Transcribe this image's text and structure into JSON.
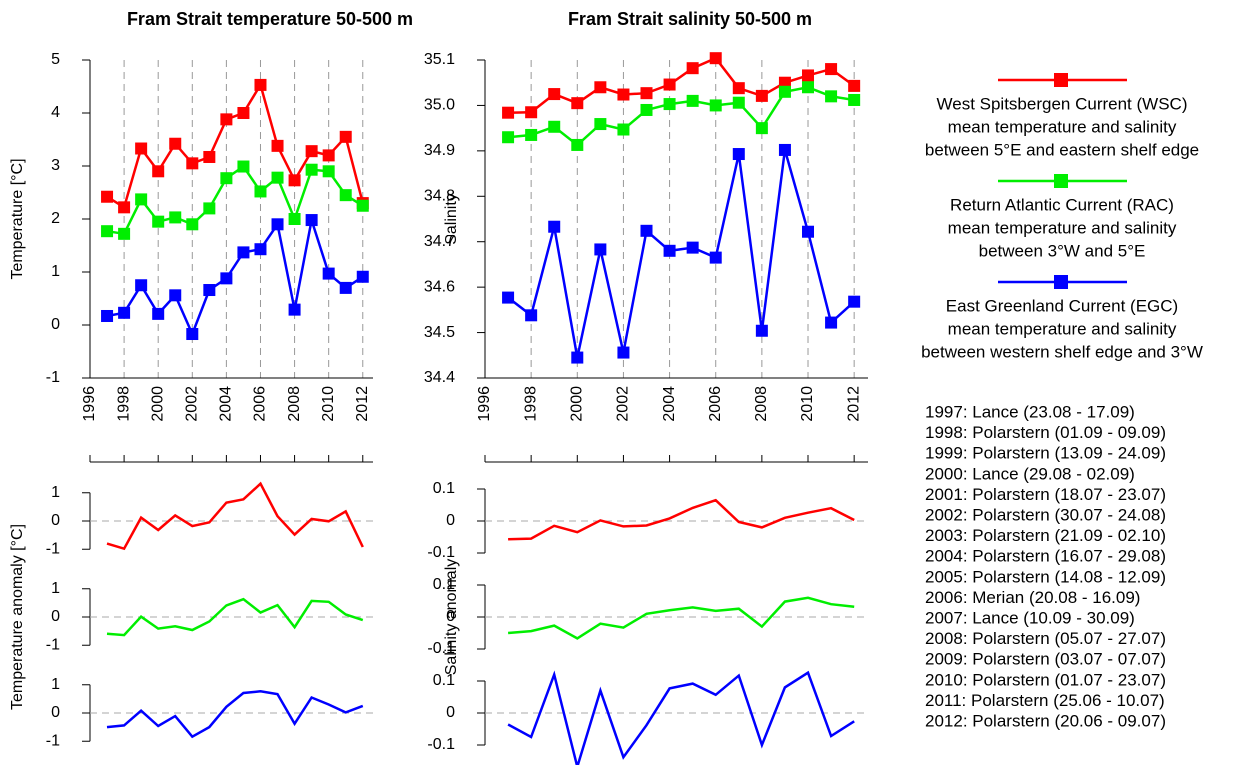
{
  "chart_data": [
    {
      "type": "line",
      "title": "Fram Strait temperature 50-500 m",
      "ylabel": "Temperature [°C]",
      "x": [
        1997,
        1998,
        1999,
        2000,
        2001,
        2002,
        2003,
        2004,
        2005,
        2006,
        2007,
        2008,
        2009,
        2010,
        2011,
        2012
      ],
      "xlim": [
        1996,
        2012.6
      ],
      "xticks": [
        1996,
        1998,
        2000,
        2002,
        2004,
        2006,
        2008,
        2010,
        2012
      ],
      "ylim": [
        -1,
        5
      ],
      "yticks": [
        -1,
        0,
        1,
        2,
        3,
        4,
        5
      ],
      "grid": "x",
      "markers": true,
      "series": [
        {
          "name": "West Spitsbergen Current (WSC)",
          "description": [
            "mean temperature and salinity",
            "between 5°E and eastern shelf edge"
          ],
          "color": "#ff0000",
          "values": [
            2.42,
            2.22,
            3.33,
            2.9,
            3.42,
            3.05,
            3.17,
            3.88,
            4.0,
            4.53,
            3.38,
            2.73,
            3.28,
            3.2,
            3.55,
            2.3
          ]
        },
        {
          "name": "Return Atlantic Current (RAC)",
          "description": [
            "mean temperature and salinity",
            "between 3°W and 5°E"
          ],
          "color": "#00ee00",
          "values": [
            1.77,
            1.72,
            2.37,
            1.95,
            2.03,
            1.9,
            2.2,
            2.77,
            2.99,
            2.52,
            2.78,
            2.0,
            2.93,
            2.9,
            2.45,
            2.25
          ]
        },
        {
          "name": "East Greenland Current (EGC)",
          "description": [
            "mean temperature and salinity",
            "between western shelf edge and 3°W"
          ],
          "color": "#0000ff",
          "values": [
            0.17,
            0.23,
            0.75,
            0.21,
            0.56,
            -0.17,
            0.66,
            0.88,
            1.37,
            1.43,
            1.9,
            0.29,
            1.98,
            0.97,
            0.7,
            0.91
          ]
        }
      ]
    },
    {
      "type": "line",
      "title": "Fram Strait salinity 50-500 m",
      "ylabel": "Salinity",
      "x": [
        1997,
        1998,
        1999,
        2000,
        2001,
        2002,
        2003,
        2004,
        2005,
        2006,
        2007,
        2008,
        2009,
        2010,
        2011,
        2012
      ],
      "xlim": [
        1996,
        2012.6
      ],
      "xticks": [
        1996,
        1998,
        2000,
        2002,
        2004,
        2006,
        2008,
        2010,
        2012
      ],
      "ylim": [
        34.4,
        35.1
      ],
      "yticks": [
        34.4,
        34.5,
        34.6,
        34.7,
        34.8,
        34.9,
        {
          "value": 35,
          "label": "35.0"
        },
        35.1
      ],
      "grid": "x",
      "markers": true,
      "series": [
        {
          "color": "#ff0000",
          "values": [
            34.984,
            34.985,
            35.025,
            35.005,
            35.04,
            35.024,
            35.027,
            35.046,
            35.082,
            35.104,
            35.038,
            35.021,
            35.05,
            35.066,
            35.08,
            35.043
          ]
        },
        {
          "color": "#00ee00",
          "values": [
            34.93,
            34.935,
            34.953,
            34.913,
            34.959,
            34.947,
            34.99,
            35.003,
            35.01,
            35.0,
            35.006,
            34.95,
            35.03,
            35.04,
            35.02,
            35.012
          ]
        },
        {
          "color": "#0000ff",
          "values": [
            34.577,
            34.538,
            34.733,
            34.445,
            34.683,
            34.456,
            34.724,
            34.68,
            34.687,
            34.665,
            34.893,
            34.504,
            34.902,
            34.722,
            34.522,
            34.568
          ]
        }
      ]
    },
    {
      "type": "panels",
      "ylabel": "Temperature anomaly [°C]",
      "x": [
        1997,
        1998,
        1999,
        2000,
        2001,
        2002,
        2003,
        2004,
        2005,
        2006,
        2007,
        2008,
        2009,
        2010,
        2011,
        2012
      ],
      "xlim": [
        1996,
        2012.6
      ],
      "xticks": [
        1996,
        1998,
        2000,
        2002,
        2004,
        2006,
        2008,
        2010,
        2012
      ],
      "ylim": [
        -1.7,
        1.7
      ],
      "yticks": [
        -1,
        0,
        1
      ],
      "zero_line": 0,
      "series": [
        {
          "color": "#ff0000",
          "values": [
            -0.8,
            -0.98,
            0.12,
            -0.32,
            0.2,
            -0.18,
            -0.05,
            0.65,
            0.77,
            1.32,
            0.17,
            -0.48,
            0.07,
            -0.01,
            0.34,
            -0.92
          ]
        },
        {
          "color": "#00ee00",
          "values": [
            -0.59,
            -0.64,
            0.01,
            -0.41,
            -0.33,
            -0.46,
            -0.16,
            0.41,
            0.63,
            0.16,
            0.42,
            -0.36,
            0.57,
            0.54,
            0.09,
            -0.11
          ]
        },
        {
          "color": "#0000ff",
          "values": [
            -0.5,
            -0.44,
            0.08,
            -0.46,
            -0.11,
            -0.84,
            -0.5,
            0.22,
            0.71,
            0.77,
            0.67,
            -0.38,
            0.55,
            0.3,
            0.02,
            0.25
          ]
        }
      ]
    },
    {
      "type": "panels",
      "ylabel": "Salinity anomaly",
      "x": [
        1997,
        1998,
        1999,
        2000,
        2001,
        2002,
        2003,
        2004,
        2005,
        2006,
        2007,
        2008,
        2009,
        2010,
        2011,
        2012
      ],
      "xlim": [
        1996,
        2012.6
      ],
      "xticks": [
        1996,
        1998,
        2000,
        2002,
        2004,
        2006,
        2008,
        2010,
        2012
      ],
      "ylim": [
        -0.15,
        0.15
      ],
      "yticks": [
        -0.1,
        0,
        0.1
      ],
      "zero_line": 0,
      "series": [
        {
          "color": "#ff0000",
          "values": [
            -0.057,
            -0.055,
            -0.015,
            -0.035,
            0.002,
            -0.017,
            -0.014,
            0.008,
            0.041,
            0.065,
            -0.003,
            -0.02,
            0.01,
            0.026,
            0.04,
            0.003
          ]
        },
        {
          "color": "#00ee00",
          "values": [
            -0.05,
            -0.044,
            -0.027,
            -0.067,
            -0.021,
            -0.033,
            0.01,
            0.021,
            0.03,
            0.019,
            0.026,
            -0.03,
            0.048,
            0.06,
            0.04,
            0.032
          ]
        },
        {
          "color": "#0000ff",
          "values": [
            -0.036,
            -0.075,
            0.12,
            -0.168,
            0.07,
            -0.138,
            -0.038,
            0.077,
            0.092,
            0.057,
            0.117,
            -0.1,
            0.08,
            0.126,
            -0.072,
            -0.026
          ]
        }
      ]
    }
  ],
  "cruises": [
    "1997: Lance (23.08 - 17.09)",
    "1998: Polarstern (01.09 - 09.09)",
    "1999: Polarstern (13.09 - 24.09)",
    "2000: Lance (29.08 - 02.09)",
    "2001: Polarstern (18.07 - 23.07)",
    "2002: Polarstern (30.07 - 24.08)",
    "2003: Polarstern (21.09 - 02.10)",
    "2004: Polarstern (16.07 - 29.08)",
    "2005: Polarstern (14.08 - 12.09)",
    "2006: Merian (20.08 - 16.09)",
    "2007: Lance (10.09 - 30.09)",
    "2008: Polarstern (05.07 - 27.07)",
    "2009: Polarstern (03.07 - 07.07)",
    "2010: Polarstern (01.07 - 23.07)",
    "2011: Polarstern (25.06 - 10.07)",
    "2012: Polarstern (20.06 - 09.07)"
  ]
}
